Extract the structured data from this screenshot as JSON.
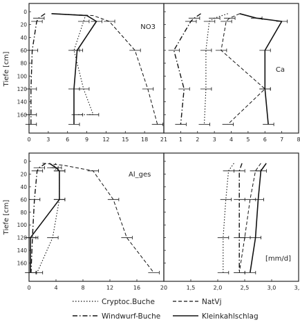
{
  "chart_data": [
    {
      "type": "line",
      "panel": "top-left",
      "annotation": "NO3",
      "ylabel": "Tiefe [cm]",
      "xlim": [
        0,
        21
      ],
      "ylim": [
        0,
        180
      ],
      "xticks": [
        0,
        3,
        6,
        9,
        12,
        15,
        18,
        21
      ],
      "yticks": [
        0,
        20,
        40,
        60,
        80,
        100,
        120,
        140,
        160
      ],
      "series": [
        {
          "name": "Cryptoc.Buche",
          "x": [
            3.5,
            8.8,
            8.5,
            7.0,
            8.5,
            10.0,
            7.5
          ],
          "y": [
            3,
            6,
            15,
            60,
            120,
            160,
            160
          ]
        },
        {
          "name": "Windwurf-Buche",
          "x": [
            2.5,
            1.5,
            1.2,
            0.5,
            0.3,
            0.3,
            0.3
          ],
          "y": [
            3,
            10,
            15,
            60,
            120,
            160,
            175
          ]
        },
        {
          "name": "NatVj",
          "x": [
            3.5,
            10.0,
            12.5,
            16.5,
            18.5,
            20.0
          ],
          "y": [
            3,
            6,
            15,
            60,
            120,
            175
          ]
        },
        {
          "name": "Kleinkahlschlag",
          "x": [
            3.5,
            9.0,
            10.5,
            7.5,
            7.0,
            7.0
          ],
          "y": [
            3,
            6,
            15,
            60,
            120,
            175
          ]
        }
      ]
    },
    {
      "type": "line",
      "panel": "top-right",
      "annotation": "Ca",
      "xlim": [
        0,
        8
      ],
      "ylim": [
        0,
        180
      ],
      "xticks": [
        1,
        2,
        3,
        4,
        5,
        6,
        7,
        8
      ],
      "series": [
        {
          "name": "Cryptoc.Buche",
          "x": [
            3.8,
            3.0,
            2.7,
            2.5,
            2.5,
            2.4
          ],
          "y": [
            3,
            10,
            15,
            60,
            120,
            175
          ]
        },
        {
          "name": "Windwurf-Buche",
          "x": [
            2.2,
            1.8,
            1.6,
            0.6,
            1.2,
            1.0
          ],
          "y": [
            3,
            10,
            15,
            60,
            120,
            175
          ]
        },
        {
          "name": "NatVj",
          "x": [
            4.5,
            3.9,
            3.7,
            3.4,
            6.0,
            3.8
          ],
          "y": [
            3,
            10,
            15,
            60,
            120,
            175
          ]
        },
        {
          "name": "Kleinkahlschlag",
          "x": [
            4.5,
            5.5,
            7.0,
            6.0,
            6.0,
            6.2
          ],
          "y": [
            3,
            10,
            15,
            60,
            120,
            175
          ]
        }
      ]
    },
    {
      "type": "line",
      "panel": "bottom-left",
      "annotation": "Al_ges",
      "ylabel": "Tiefe [cm]",
      "xlim": [
        0,
        20
      ],
      "ylim": [
        0,
        180
      ],
      "xticks": [
        0,
        4,
        8,
        12,
        16,
        20
      ],
      "yticks": [
        0,
        20,
        40,
        60,
        80,
        100,
        120,
        140,
        160
      ],
      "series": [
        {
          "name": "Cryptoc.Buche",
          "x": [
            4.0,
            3.5,
            4.5,
            4.5,
            3.5,
            1.2
          ],
          "y": [
            3,
            10,
            15,
            60,
            120,
            175
          ]
        },
        {
          "name": "Windwurf-Buche",
          "x": [
            2.5,
            1.5,
            1.2,
            0.8,
            0.5,
            0.3
          ],
          "y": [
            3,
            10,
            15,
            60,
            120,
            175
          ]
        },
        {
          "name": "NatVj",
          "x": [
            2.0,
            5.0,
            9.5,
            12.5,
            14.5,
            18.5
          ],
          "y": [
            3,
            6,
            15,
            60,
            120,
            175
          ]
        },
        {
          "name": "Kleinkahlschlag",
          "x": [
            3.0,
            4.0,
            4.5,
            4.5,
            0.2,
            0.2
          ],
          "y": [
            3,
            10,
            15,
            60,
            120,
            175
          ]
        }
      ]
    },
    {
      "type": "line",
      "panel": "bottom-right",
      "annotation": "[mm/d]",
      "xlim": [
        1.0,
        3.5
      ],
      "ylim": [
        0,
        180
      ],
      "xticks": [
        1.5,
        2.0,
        2.5,
        3.0,
        3.5
      ],
      "xticklabels": [
        "1,5",
        "2,0",
        "2,5",
        "3,0",
        "3,5"
      ],
      "series": [
        {
          "name": "Cryptoc.Buche",
          "x": [
            2.3,
            2.2,
            2.15,
            2.1,
            2.1
          ],
          "y": [
            3,
            15,
            60,
            120,
            175
          ]
        },
        {
          "name": "Windwurf-Buche",
          "x": [
            2.45,
            2.4,
            2.4,
            2.4,
            2.4
          ],
          "y": [
            3,
            15,
            60,
            120,
            175
          ]
        },
        {
          "name": "NatVj",
          "x": [
            2.8,
            2.7,
            2.6,
            2.5,
            2.4
          ],
          "y": [
            3,
            15,
            60,
            120,
            175
          ]
        },
        {
          "name": "Kleinkahlschlag",
          "x": [
            2.9,
            2.8,
            2.75,
            2.7,
            2.6
          ],
          "y": [
            3,
            15,
            60,
            120,
            175
          ]
        }
      ]
    }
  ],
  "legend": {
    "placement": "bottom",
    "items": [
      {
        "label": "Cryptoc.Buche",
        "dash": "dotted"
      },
      {
        "label": "NatVj",
        "dash": "dashed"
      },
      {
        "label": "Windwurf-Buche",
        "dash": "dashdot"
      },
      {
        "label": "Kleinkahlschlag",
        "dash": "solid"
      }
    ]
  },
  "styles": {
    "Cryptoc.Buche": {
      "dash": "1.5,2.5",
      "width": 1.1
    },
    "Windwurf-Buche": {
      "dash": "7,3,1.5,3",
      "width": 1.4
    },
    "NatVj": {
      "dash": "5,3",
      "width": 1.0
    },
    "Kleinkahlschlag": {
      "dash": "",
      "width": 1.6
    }
  },
  "colors": {
    "line": "#111111",
    "frame": "#222222"
  }
}
